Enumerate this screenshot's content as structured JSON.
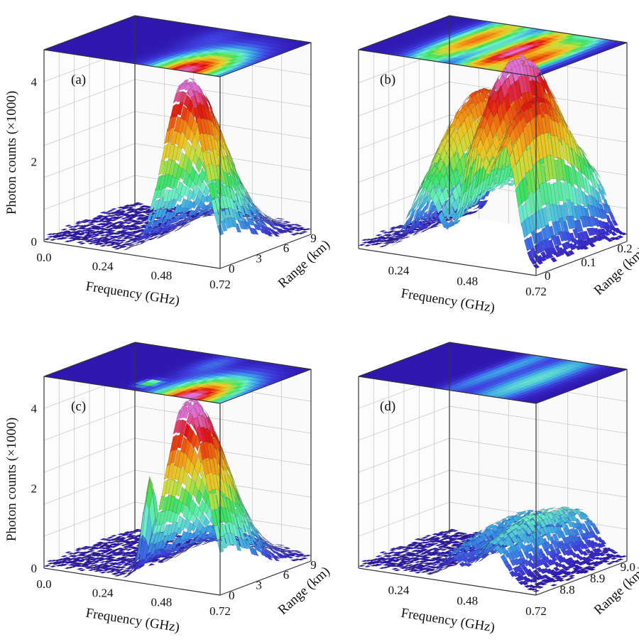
{
  "chart_data": [
    {
      "type": "surface",
      "panel_label": "(a)",
      "zlabel": "Photon counts (×1000)",
      "xlabel": "Frequency (GHz)",
      "ylabel": "Range (km)",
      "z_ticks": [
        "0",
        "2",
        "4"
      ],
      "x_ticks": [
        "0.0",
        "0.24",
        "0.48",
        "0.72"
      ],
      "y_ticks": [
        "0",
        "3",
        "6",
        "9"
      ],
      "xlim": [
        0,
        0.72
      ],
      "ylim": [
        0,
        10
      ],
      "zlim": [
        0,
        4.8
      ],
      "peaks": [
        {
          "frequency_ghz": 0.57,
          "range_km": 0.4,
          "amplitude_k": 4.4,
          "width_ghz": 0.08,
          "decay_km": 3.5
        },
        {
          "frequency_ghz": 0.4,
          "range_km": 8.0,
          "amplitude_k": 0.35,
          "width_ghz": 0.05,
          "decay_km": 2.0
        }
      ],
      "baseline_k": 0.12,
      "projection_on_top": true
    },
    {
      "type": "surface",
      "panel_label": "(b)",
      "zlabel": "",
      "xlabel": "Frequency (GHz)",
      "ylabel": "Range (km)",
      "z_ticks": [],
      "x_ticks": [
        "0.24",
        "0.48",
        "0.72"
      ],
      "y_ticks": [
        "0",
        "0.1",
        "0.2"
      ],
      "xlim": [
        0.1,
        0.72
      ],
      "ylim": [
        0,
        0.25
      ],
      "zlim": [
        0,
        4.8
      ],
      "peaks": [
        {
          "frequency_ghz": 0.33,
          "range_km": 0.15,
          "amplitude_k": 3.4,
          "width_ghz": 0.05,
          "decay_km": 0.12
        },
        {
          "frequency_ghz": 0.5,
          "range_km": 0.12,
          "amplitude_k": 4.4,
          "width_ghz": 0.04,
          "decay_km": 0.12
        },
        {
          "frequency_ghz": 0.61,
          "range_km": 0.08,
          "amplitude_k": 3.6,
          "width_ghz": 0.04,
          "decay_km": 0.12
        }
      ],
      "baseline_k": 0.15,
      "projection_on_top": true
    },
    {
      "type": "surface",
      "panel_label": "(c)",
      "zlabel": "Photon counts (×1000)",
      "xlabel": "Frequency (GHz)",
      "ylabel": "Range (km)",
      "z_ticks": [
        "0",
        "2",
        "4"
      ],
      "x_ticks": [
        "0.0",
        "0.24",
        "0.48",
        "0.72"
      ],
      "y_ticks": [
        "0",
        "3",
        "6",
        "9"
      ],
      "xlim": [
        0,
        0.72
      ],
      "ylim": [
        0,
        10
      ],
      "zlim": [
        0,
        4.8
      ],
      "peaks": [
        {
          "frequency_ghz": 0.58,
          "range_km": 0.4,
          "amplitude_k": 4.6,
          "width_ghz": 0.08,
          "decay_km": 3.5
        },
        {
          "frequency_ghz": 0.4,
          "range_km": 8.0,
          "amplitude_k": 0.6,
          "width_ghz": 0.04,
          "decay_km": 2.0
        },
        {
          "frequency_ghz": 0.36,
          "range_km": 2.0,
          "amplitude_k": 2.2,
          "width_ghz": 0.02,
          "decay_km": 0.6
        }
      ],
      "baseline_k": 0.12,
      "projection_on_top": true
    },
    {
      "type": "surface",
      "panel_label": "(d)",
      "zlabel": "",
      "xlabel": "Frequency (GHz)",
      "ylabel": "Range (km)",
      "z_ticks": [],
      "x_ticks": [
        "0.24",
        "0.48",
        "0.72"
      ],
      "y_ticks": [
        "8.8",
        "8.9",
        "9.0"
      ],
      "xlim": [
        0.1,
        0.72
      ],
      "ylim": [
        8.75,
        9.05
      ],
      "zlim": [
        0,
        4.8
      ],
      "peaks": [
        {
          "frequency_ghz": 0.42,
          "range_km": 8.95,
          "amplitude_k": 0.9,
          "width_ghz": 0.03,
          "decay_km": 0.2
        },
        {
          "frequency_ghz": 0.56,
          "range_km": 8.9,
          "amplitude_k": 1.3,
          "width_ghz": 0.05,
          "decay_km": 0.2
        }
      ],
      "baseline_k": 0.12,
      "projection_on_top": true
    }
  ],
  "colormap": [
    "#2a0aa0",
    "#3f3fe0",
    "#3aa0e8",
    "#6ef0c8",
    "#3ce060",
    "#c8e040",
    "#f0c020",
    "#f07010",
    "#e01010",
    "#e070d0"
  ]
}
